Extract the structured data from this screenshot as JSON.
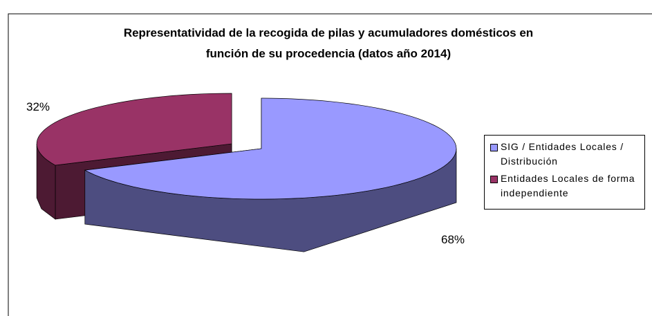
{
  "chart_data": {
    "type": "pie",
    "title": "Representatividad de la recogida de pilas y acumuladores domésticos en función de su procedencia (datos año 2014)",
    "title_lines": [
      "Representatividad de la recogida de pilas y acumuladores domésticos en",
      "función de su procedencia (datos año 2014)"
    ],
    "categories": [
      "SIG / Entidades Locales / Distribución",
      "Entidades Locales de forma independiente"
    ],
    "values": [
      68,
      32
    ],
    "value_labels": [
      "68%",
      "32%"
    ],
    "colors": [
      "#9999ff",
      "#993366"
    ],
    "side_colors": [
      "#4d4d80",
      "#4d1a33"
    ],
    "legend": "right"
  }
}
